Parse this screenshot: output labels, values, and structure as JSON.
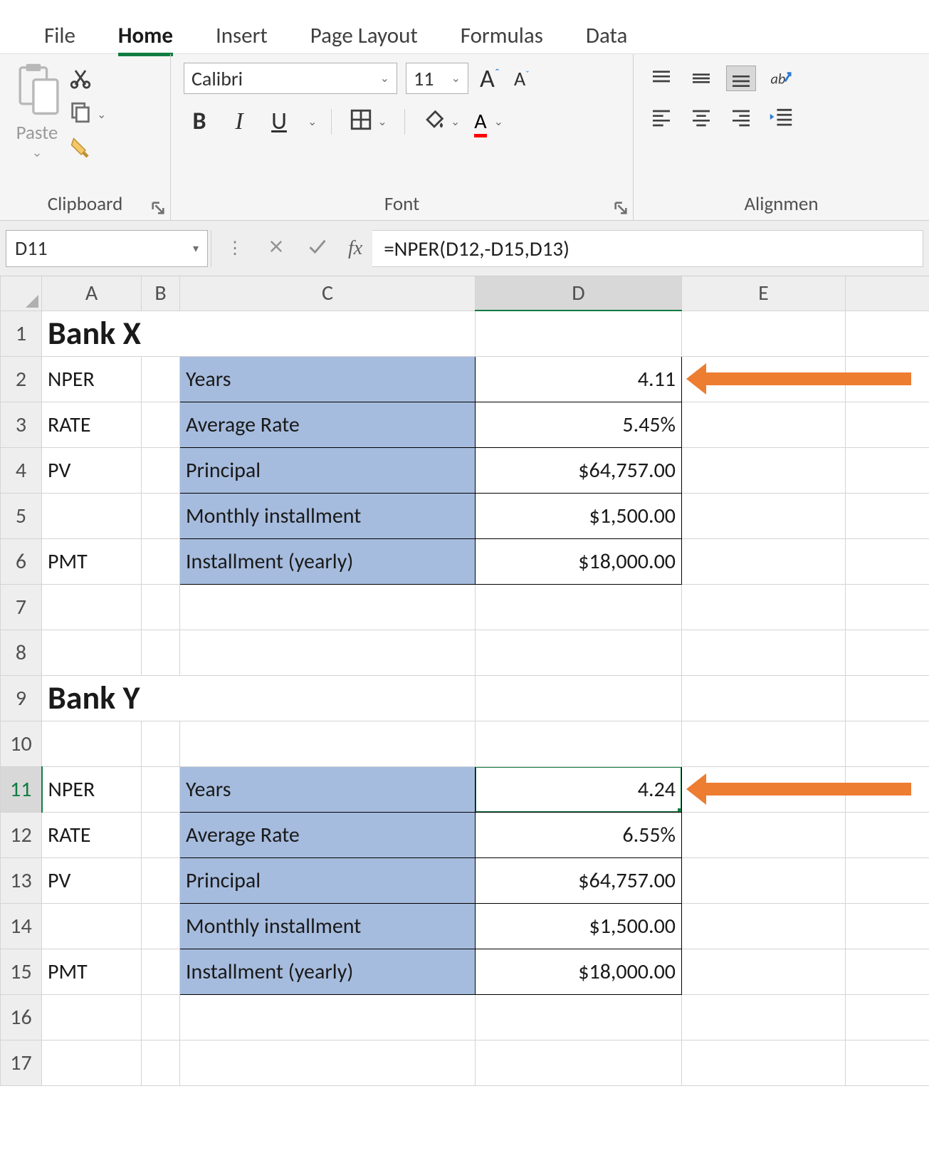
{
  "ribbon": {
    "tabs": [
      "File",
      "Home",
      "Insert",
      "Page Layout",
      "Formulas",
      "Data"
    ],
    "active_tab": "Home",
    "clipboard": {
      "paste_label": "Paste",
      "group_label": "Clipboard"
    },
    "font": {
      "group_label": "Font",
      "font_name": "Calibri",
      "font_size": "11",
      "bold_label": "B",
      "italic_label": "I",
      "underline_label": "U"
    },
    "alignment": {
      "group_label": "Alignmen"
    }
  },
  "formula_bar": {
    "cell_ref": "D11",
    "fx_label": "fx",
    "formula": "=NPER(D12,-D15,D13)"
  },
  "columns": [
    "A",
    "B",
    "C",
    "D",
    "E"
  ],
  "selected_column": "D",
  "selected_row": 11,
  "rows": [
    {
      "n": 1,
      "A": "Bank X",
      "A_class": "bank-title",
      "A_span": 3
    },
    {
      "n": 2,
      "A": "NPER",
      "C": "Years",
      "D": "4.11",
      "lbl": true,
      "arrow": true
    },
    {
      "n": 3,
      "A": "RATE",
      "C": "Average Rate",
      "D": "5.45%",
      "lbl": true
    },
    {
      "n": 4,
      "A": "PV",
      "C": "Principal",
      "D": "$64,757.00",
      "lbl": true
    },
    {
      "n": 5,
      "A": "",
      "C": "Monthly installment",
      "D": "$1,500.00",
      "lbl": true
    },
    {
      "n": 6,
      "A": "PMT",
      "C": "Installment (yearly)",
      "D": "$18,000.00",
      "lbl": true
    },
    {
      "n": 7
    },
    {
      "n": 8
    },
    {
      "n": 9,
      "A": "Bank Y",
      "A_class": "bank-title",
      "A_span": 3
    },
    {
      "n": 10
    },
    {
      "n": 11,
      "A": "NPER",
      "C": "Years",
      "D": "4.24",
      "lbl": true,
      "selected": true,
      "arrow": true
    },
    {
      "n": 12,
      "A": "RATE",
      "C": "Average Rate",
      "D": "6.55%",
      "lbl": true
    },
    {
      "n": 13,
      "A": "PV",
      "C": "Principal",
      "D": "$64,757.00",
      "lbl": true
    },
    {
      "n": 14,
      "A": "",
      "C": "Monthly installment",
      "D": "$1,500.00",
      "lbl": true
    },
    {
      "n": 15,
      "A": "PMT",
      "C": "Installment (yearly)",
      "D": "$18,000.00",
      "lbl": true
    },
    {
      "n": 16
    },
    {
      "n": 17
    }
  ],
  "colors": {
    "accent": "#107c41",
    "label_bg": "#a6bcde",
    "arrow": "#ed7d31"
  }
}
